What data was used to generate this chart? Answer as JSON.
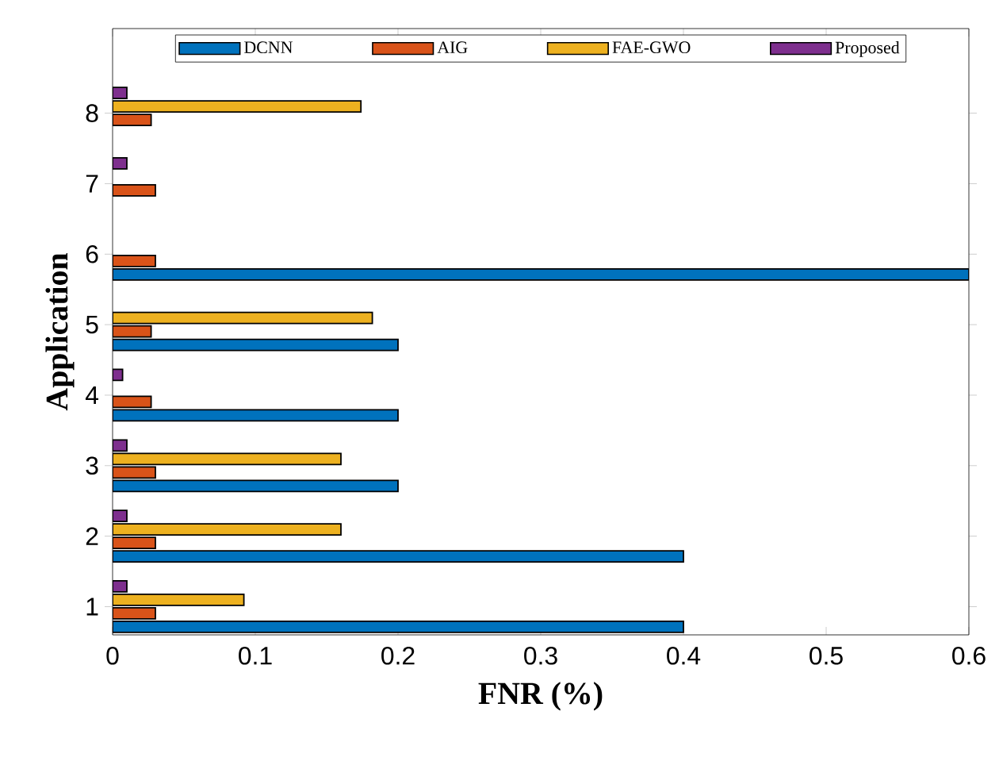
{
  "chart_data": {
    "type": "bar",
    "orientation": "horizontal",
    "xlabel": "FNR (%)",
    "ylabel": "Application",
    "categories": [
      "8",
      "7",
      "6",
      "5",
      "4",
      "3",
      "2",
      "1"
    ],
    "series": [
      {
        "name": "DCNN",
        "color": "#0072bd",
        "values": [
          null,
          null,
          0.6,
          0.2,
          0.2,
          0.2,
          0.4,
          0.4
        ]
      },
      {
        "name": "AIG",
        "color": "#d95319",
        "values": [
          0.027,
          0.03,
          0.03,
          0.027,
          0.027,
          0.03,
          0.03,
          0.03
        ]
      },
      {
        "name": "FAE-GWO",
        "color": "#edb120",
        "values": [
          0.174,
          null,
          null,
          0.182,
          null,
          0.16,
          0.16,
          0.092
        ]
      },
      {
        "name": "Proposed",
        "color": "#7e2f8e",
        "values": [
          0.01,
          0.01,
          null,
          null,
          0.007,
          0.01,
          0.01,
          0.01
        ]
      }
    ],
    "xlim": [
      0,
      0.6
    ],
    "xticks": [
      0,
      0.1,
      0.2,
      0.3,
      0.4,
      0.5,
      0.6
    ],
    "grid": false,
    "legend": "top"
  }
}
